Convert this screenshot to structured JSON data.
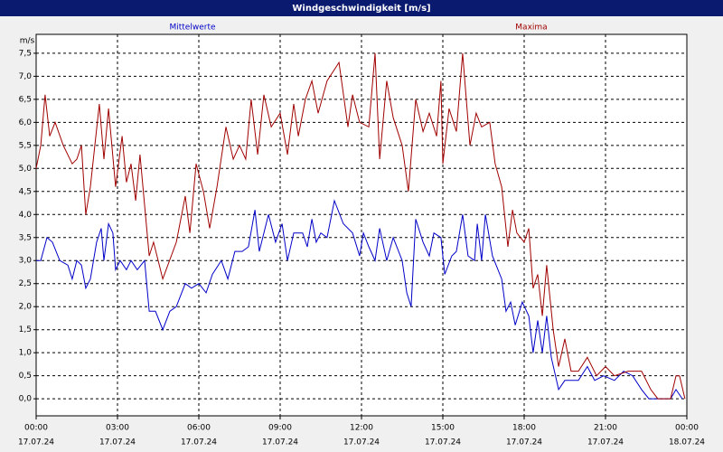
{
  "chart_data": {
    "type": "line",
    "title": "Windgeschwindigkeit [m/s]",
    "ylabel": "m/s",
    "xlim": [
      0,
      24
    ],
    "ylim": [
      -0.37,
      7.91
    ],
    "grid": true,
    "xticks": [
      {
        "value": 0,
        "label": "00:00"
      },
      {
        "value": 3,
        "label": "03:00"
      },
      {
        "value": 6,
        "label": "06:00"
      },
      {
        "value": 9,
        "label": "09:00"
      },
      {
        "value": 12,
        "label": "12:00"
      },
      {
        "value": 15,
        "label": "15:00"
      },
      {
        "value": 18,
        "label": "18:00"
      },
      {
        "value": 21,
        "label": "21:00"
      },
      {
        "value": 24,
        "label": "00:00"
      }
    ],
    "xtick_dates": [
      "17.07.24",
      "17.07.24",
      "17.07.24",
      "17.07.24",
      "17.07.24",
      "17.07.24",
      "17.07.24",
      "17.07.24",
      "18.07.24"
    ],
    "yticks": [
      {
        "value": 0,
        "label": "0,0"
      },
      {
        "value": 0.5,
        "label": "0,5"
      },
      {
        "value": 1,
        "label": "1,0"
      },
      {
        "value": 1.5,
        "label": "1,5"
      },
      {
        "value": 2,
        "label": "2,0"
      },
      {
        "value": 2.5,
        "label": "2,5"
      },
      {
        "value": 3,
        "label": "3,0"
      },
      {
        "value": 3.5,
        "label": "3,5"
      },
      {
        "value": 4,
        "label": "4,0"
      },
      {
        "value": 4.5,
        "label": "4,5"
      },
      {
        "value": 5,
        "label": "5,0"
      },
      {
        "value": 5.5,
        "label": "5,5"
      },
      {
        "value": 6,
        "label": "6,0"
      },
      {
        "value": 6.5,
        "label": "6,5"
      },
      {
        "value": 7,
        "label": "7,0"
      },
      {
        "value": 7.5,
        "label": "7,5"
      }
    ],
    "series": [
      {
        "name": "Mittelwerte",
        "color": "#0000c8",
        "x": [
          0,
          0.17,
          0.4,
          0.6,
          0.87,
          1.17,
          1.33,
          1.5,
          1.67,
          1.83,
          2.0,
          2.23,
          2.4,
          2.5,
          2.67,
          2.83,
          2.93,
          3.1,
          3.33,
          3.5,
          3.73,
          4.0,
          4.17,
          4.4,
          4.67,
          4.93,
          5.17,
          5.5,
          5.73,
          6.0,
          6.27,
          6.5,
          6.83,
          7.07,
          7.33,
          7.6,
          7.83,
          8.07,
          8.23,
          8.57,
          8.83,
          9.07,
          9.27,
          9.5,
          9.83,
          10.0,
          10.17,
          10.33,
          10.5,
          10.73,
          11.0,
          11.33,
          11.67,
          11.93,
          12.07,
          12.27,
          12.5,
          12.67,
          12.93,
          13.17,
          13.5,
          13.67,
          13.83,
          14.0,
          14.27,
          14.5,
          14.67,
          14.93,
          15.07,
          15.33,
          15.5,
          15.73,
          15.93,
          16.17,
          16.27,
          16.43,
          16.57,
          16.83,
          17.17,
          17.33,
          17.5,
          17.67,
          17.93,
          18.17,
          18.33,
          18.5,
          18.67,
          18.83,
          19.0,
          19.27,
          19.5,
          20.0,
          20.33,
          20.6,
          20.93,
          21.33,
          21.67,
          22.0,
          22.33,
          22.6,
          23.4,
          23.6,
          23.83
        ],
        "values": [
          3.0,
          3.0,
          3.5,
          3.4,
          3.0,
          2.9,
          2.6,
          3.0,
          2.9,
          2.4,
          2.6,
          3.4,
          3.7,
          3.0,
          3.8,
          3.6,
          2.8,
          3.0,
          2.8,
          3.0,
          2.8,
          3.0,
          1.9,
          1.9,
          1.5,
          1.9,
          2.0,
          2.5,
          2.4,
          2.5,
          2.3,
          2.7,
          3.0,
          2.6,
          3.2,
          3.2,
          3.3,
          4.1,
          3.2,
          4.0,
          3.4,
          3.8,
          3.0,
          3.6,
          3.6,
          3.3,
          3.9,
          3.4,
          3.6,
          3.5,
          4.3,
          3.8,
          3.6,
          3.1,
          3.6,
          3.3,
          3.0,
          3.7,
          3.0,
          3.5,
          3.0,
          2.3,
          2.0,
          3.9,
          3.4,
          3.1,
          3.6,
          3.5,
          2.7,
          3.1,
          3.2,
          4.0,
          3.1,
          3.0,
          3.8,
          3.0,
          4.0,
          3.1,
          2.6,
          1.9,
          2.1,
          1.6,
          2.1,
          1.8,
          1.0,
          1.7,
          1.0,
          1.8,
          0.9,
          0.2,
          0.4,
          0.4,
          0.7,
          0.4,
          0.5,
          0.4,
          0.6,
          0.5,
          0.2,
          0.0,
          0.0,
          0.2,
          0.0
        ]
      },
      {
        "name": "Maxima",
        "color": "#a00000",
        "x": [
          0,
          0.17,
          0.33,
          0.5,
          0.7,
          1.0,
          1.33,
          1.5,
          1.67,
          1.83,
          2.0,
          2.33,
          2.5,
          2.67,
          2.93,
          3.17,
          3.33,
          3.5,
          3.67,
          3.83,
          4.17,
          4.33,
          4.67,
          5.17,
          5.5,
          5.67,
          5.9,
          6.17,
          6.4,
          6.67,
          7.0,
          7.27,
          7.5,
          7.73,
          7.93,
          8.17,
          8.4,
          8.67,
          9.0,
          9.27,
          9.5,
          9.67,
          9.93,
          10.17,
          10.4,
          10.73,
          11.17,
          11.5,
          11.67,
          11.93,
          12.27,
          12.5,
          12.67,
          12.93,
          13.17,
          13.5,
          13.73,
          14.0,
          14.27,
          14.5,
          14.77,
          14.93,
          15.0,
          15.23,
          15.5,
          15.73,
          16.0,
          16.23,
          16.43,
          16.73,
          16.93,
          17.17,
          17.4,
          17.57,
          17.73,
          18.0,
          18.17,
          18.33,
          18.5,
          18.67,
          18.83,
          19.07,
          19.27,
          19.5,
          19.73,
          20.0,
          20.33,
          20.67,
          21.0,
          21.33,
          21.83,
          22.33,
          22.67,
          22.93,
          23.4,
          23.6,
          23.73,
          23.93
        ],
        "values": [
          5.0,
          5.5,
          6.6,
          5.7,
          6.0,
          5.5,
          5.1,
          5.2,
          5.5,
          4.0,
          4.6,
          6.4,
          5.2,
          6.3,
          4.6,
          5.7,
          4.7,
          5.1,
          4.3,
          5.3,
          3.1,
          3.4,
          2.6,
          3.4,
          4.4,
          3.6,
          5.1,
          4.5,
          3.7,
          4.6,
          5.9,
          5.2,
          5.5,
          5.2,
          6.5,
          5.3,
          6.6,
          5.9,
          6.2,
          5.3,
          6.4,
          5.7,
          6.5,
          6.9,
          6.2,
          6.9,
          7.3,
          5.9,
          6.6,
          6.0,
          5.9,
          7.5,
          5.2,
          6.9,
          6.1,
          5.5,
          4.5,
          6.5,
          5.8,
          6.2,
          5.7,
          6.9,
          5.1,
          6.3,
          5.8,
          7.5,
          5.5,
          6.2,
          5.9,
          6.0,
          5.1,
          4.6,
          3.3,
          4.1,
          3.6,
          3.4,
          3.7,
          2.4,
          2.7,
          1.8,
          2.9,
          1.5,
          0.7,
          1.3,
          0.6,
          0.6,
          0.9,
          0.5,
          0.7,
          0.5,
          0.6,
          0.6,
          0.2,
          0.0,
          0.0,
          0.5,
          0.5,
          0.0
        ]
      }
    ]
  }
}
